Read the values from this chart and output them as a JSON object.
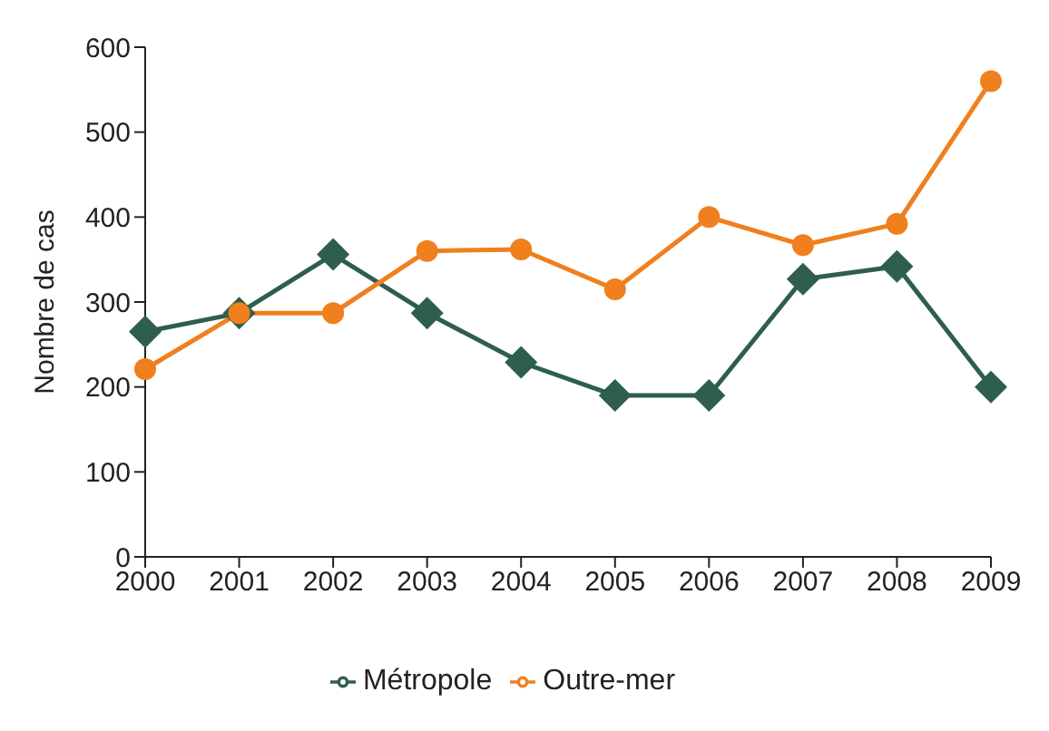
{
  "chart_data": {
    "type": "line",
    "ylabel": "Nombre de cas",
    "categories": [
      "2000",
      "2001",
      "2002",
      "2003",
      "2004",
      "2005",
      "2006",
      "2007",
      "2008",
      "2009"
    ],
    "series": [
      {
        "name": "Métropole",
        "color": "#2e5e4e",
        "marker": "diamond",
        "values": [
          265,
          287,
          356,
          287,
          229,
          190,
          190,
          327,
          342,
          200
        ]
      },
      {
        "name": "Outre-mer",
        "color": "#f07f1e",
        "marker": "circle",
        "values": [
          221,
          287,
          287,
          360,
          362,
          315,
          400,
          367,
          392,
          560
        ]
      }
    ],
    "ylim": [
      0,
      600
    ],
    "yticks": [
      0,
      100,
      200,
      300,
      400,
      500,
      600
    ],
    "grid": false,
    "legend": "bottom",
    "line_style": "solid"
  }
}
